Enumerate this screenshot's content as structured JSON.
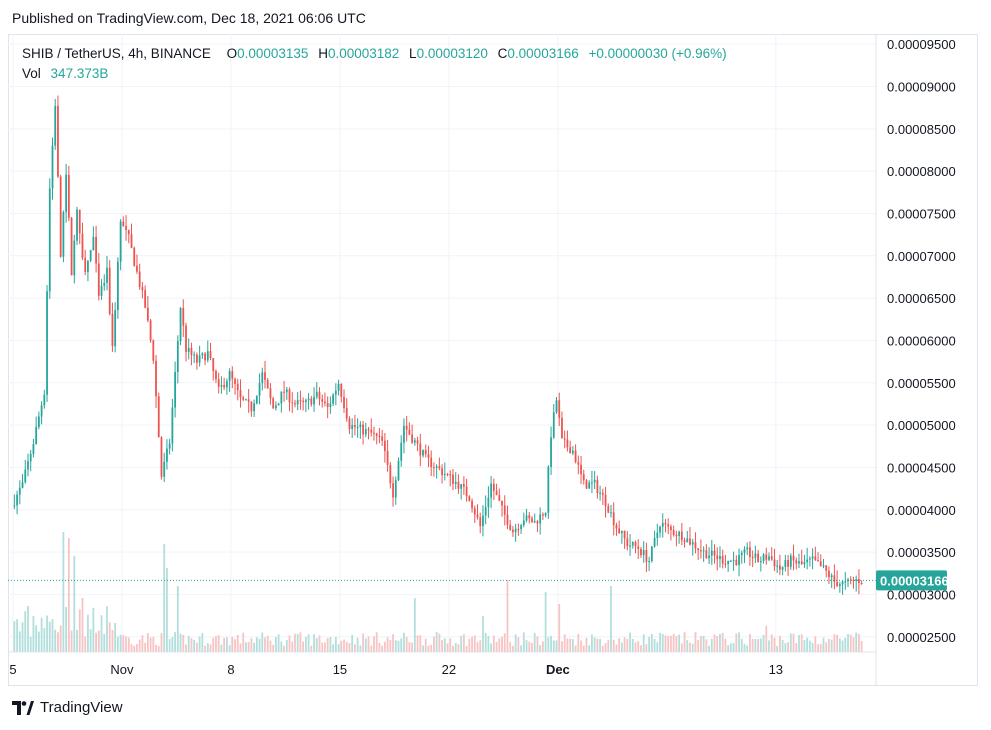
{
  "header": {
    "published": "Published on TradingView.com, Dec 18, 2021 06:06 UTC"
  },
  "legend": {
    "symbol": "SHIB / TetherUS, 4h, BINANCE",
    "o_label": "O",
    "o_value": "0.00003135",
    "h_label": "H",
    "h_value": "0.00003182",
    "l_label": "L",
    "l_value": "0.00003120",
    "c_label": "C",
    "c_value": "0.00003166",
    "change": "+0.00000030 (+0.96%)",
    "vol_label": "Vol",
    "vol_value": "347.373B"
  },
  "footer": {
    "brand": "TradingView"
  },
  "colors": {
    "up": "#26a69a",
    "down": "#ef5350",
    "up_vol": "#b2dfdb",
    "down_vol": "#f7c4c4",
    "grid": "#f0f3fa",
    "price_tag": "#26a69a"
  },
  "chart_data": {
    "type": "candlestick",
    "title": "SHIB / TetherUS, 4h, BINANCE",
    "ylim": [
      2.32e-05,
      9.62e-05
    ],
    "y_ticks": [
      "0.00009500",
      "0.00009000",
      "0.00008500",
      "0.00008000",
      "0.00007500",
      "0.00007000",
      "0.00006500",
      "0.00006000",
      "0.00005500",
      "0.00005000",
      "0.00004500",
      "0.00004000",
      "0.00003500",
      "0.00003000",
      "0.00002500"
    ],
    "x_ticks": [
      {
        "label": "5",
        "t": 0
      },
      {
        "label": "Nov",
        "t": 40
      },
      {
        "label": "8",
        "t": 80
      },
      {
        "label": "15",
        "t": 120
      },
      {
        "label": "22",
        "t": 160
      },
      {
        "label": "Dec",
        "t": 200,
        "bold": true
      },
      {
        "label": "13",
        "t": 280
      }
    ],
    "t_range": [
      0,
      312
    ],
    "last_price": "0.00003166",
    "path_points": [
      [
        0,
        4.05
      ],
      [
        4,
        4.3
      ],
      [
        8,
        4.8
      ],
      [
        12,
        5.4
      ],
      [
        14,
        7.8
      ],
      [
        16,
        8.8
      ],
      [
        18,
        7.0
      ],
      [
        20,
        8.0
      ],
      [
        22,
        6.8
      ],
      [
        24,
        7.5
      ],
      [
        27,
        6.8
      ],
      [
        30,
        7.2
      ],
      [
        32,
        6.5
      ],
      [
        35,
        6.8
      ],
      [
        37,
        5.9
      ],
      [
        40,
        7.4
      ],
      [
        43,
        7.2
      ],
      [
        46,
        6.8
      ],
      [
        49,
        6.4
      ],
      [
        52,
        5.8
      ],
      [
        55,
        4.4
      ],
      [
        58,
        4.8
      ],
      [
        60,
        5.6
      ],
      [
        62,
        6.4
      ],
      [
        64,
        5.9
      ],
      [
        68,
        5.75
      ],
      [
        72,
        5.85
      ],
      [
        76,
        5.4
      ],
      [
        80,
        5.6
      ],
      [
        84,
        5.3
      ],
      [
        88,
        5.2
      ],
      [
        92,
        5.6
      ],
      [
        96,
        5.2
      ],
      [
        100,
        5.4
      ],
      [
        104,
        5.25
      ],
      [
        108,
        5.25
      ],
      [
        112,
        5.35
      ],
      [
        116,
        5.2
      ],
      [
        120,
        5.5
      ],
      [
        124,
        5.0
      ],
      [
        128,
        4.95
      ],
      [
        132,
        4.9
      ],
      [
        136,
        4.8
      ],
      [
        140,
        4.2
      ],
      [
        144,
        5.0
      ],
      [
        148,
        4.8
      ],
      [
        152,
        4.6
      ],
      [
        156,
        4.5
      ],
      [
        160,
        4.4
      ],
      [
        164,
        4.3
      ],
      [
        168,
        4.15
      ],
      [
        172,
        3.8
      ],
      [
        176,
        4.3
      ],
      [
        180,
        4.0
      ],
      [
        184,
        3.75
      ],
      [
        188,
        3.9
      ],
      [
        192,
        3.85
      ],
      [
        196,
        4.0
      ],
      [
        198,
        4.9
      ],
      [
        200,
        5.3
      ],
      [
        202,
        4.8
      ],
      [
        206,
        4.7
      ],
      [
        210,
        4.3
      ],
      [
        214,
        4.3
      ],
      [
        218,
        4.1
      ],
      [
        222,
        3.8
      ],
      [
        226,
        3.6
      ],
      [
        230,
        3.55
      ],
      [
        234,
        3.4
      ],
      [
        238,
        3.85
      ],
      [
        242,
        3.75
      ],
      [
        246,
        3.7
      ],
      [
        250,
        3.6
      ],
      [
        254,
        3.5
      ],
      [
        258,
        3.45
      ],
      [
        262,
        3.4
      ],
      [
        266,
        3.4
      ],
      [
        270,
        3.5
      ],
      [
        274,
        3.4
      ],
      [
        278,
        3.45
      ],
      [
        282,
        3.3
      ],
      [
        286,
        3.4
      ],
      [
        290,
        3.35
      ],
      [
        294,
        3.4
      ],
      [
        298,
        3.3
      ],
      [
        302,
        3.15
      ],
      [
        306,
        3.12
      ],
      [
        310,
        3.17
      ]
    ],
    "volume_spikes": [
      [
        18,
        100
      ],
      [
        20,
        95
      ],
      [
        22,
        80
      ],
      [
        25,
        45
      ],
      [
        55,
        90
      ],
      [
        56,
        70
      ],
      [
        60,
        55
      ],
      [
        147,
        45
      ],
      [
        172,
        30
      ],
      [
        181,
        60
      ],
      [
        195,
        50
      ],
      [
        200,
        40
      ],
      [
        219,
        55
      ],
      [
        276,
        22
      ]
    ],
    "volume_axis_max": 100
  }
}
